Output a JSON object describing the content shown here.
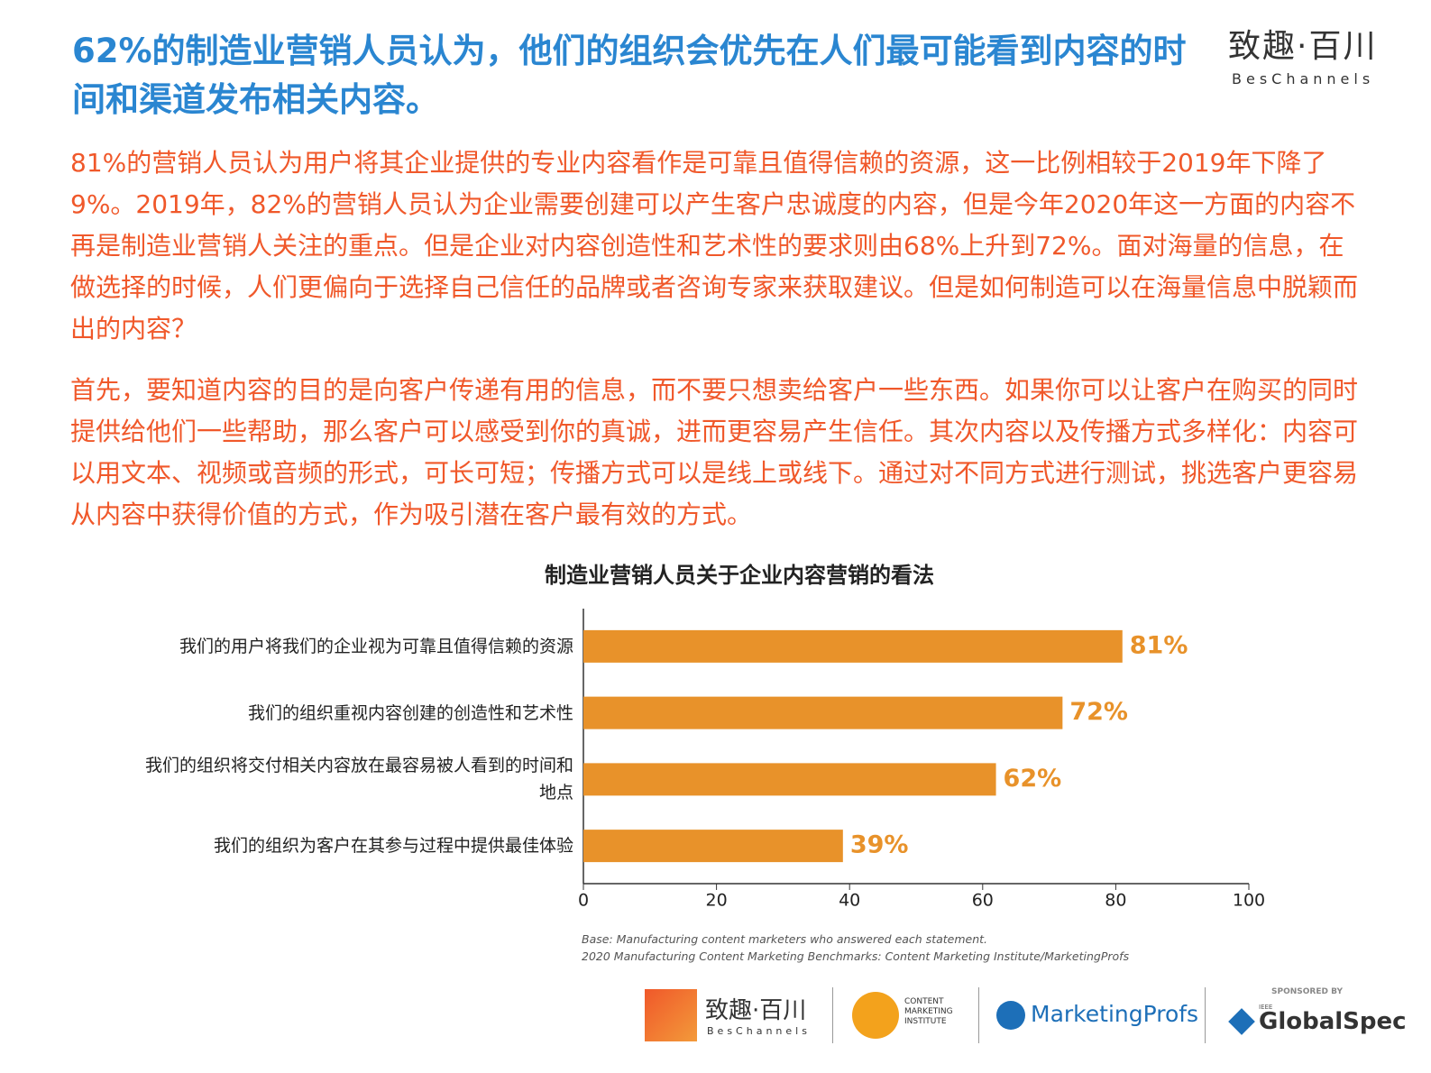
{
  "header": {
    "title": "62%的制造业营销人员认为，他们的组织会优先在人们最可能看到内容的时间和渠道发布相关内容。",
    "logo_cn": "致趣·百川",
    "logo_en": "BesChannels"
  },
  "paragraphs": [
    "81%的营销人员认为用户将其企业提供的专业内容看作是可靠且值得信赖的资源，这一比例相较于2019年下降了9%。2019年，82%的营销人员认为企业需要创建可以产生客户忠诚度的内容，但是今年2020年这一方面的内容不再是制造业营销人关注的重点。但是企业对内容创造性和艺术性的要求则由68%上升到72%。面对海量的信息，在做选择的时候，人们更偏向于选择自己信任的品牌或者咨询专家来获取建议。但是如何制造可以在海量信息中脱颖而出的内容？",
    "首先，要知道内容的目的是向客户传递有用的信息，而不要只想卖给客户一些东西。如果你可以让客户在购买的同时提供给他们一些帮助，那么客户可以感受到你的真诚，进而更容易产生信任。其次内容以及传播方式多样化：内容可以用文本、视频或音频的形式，可长可短；传播方式可以是线上或线下。通过对不同方式进行测试，挑选客户更容易从内容中获得价值的方式，作为吸引潜在客户最有效的方式。"
  ],
  "chart_data": {
    "type": "bar",
    "orientation": "horizontal",
    "title": "制造业营销人员关于企业内容营销的看法",
    "categories": [
      "我们的用户将我们的企业视为可靠且值得信赖的资源",
      "我们的组织重视内容创建的创造性和艺术性",
      "我们的组织将交付相关内容放在最容易被人看到的时间和地点",
      "我们的组织为客户在其参与过程中提供最佳体验"
    ],
    "values": [
      81,
      72,
      62,
      39
    ],
    "value_labels": [
      "81%",
      "72%",
      "62%",
      "39%"
    ],
    "color": "#e8922a",
    "xlim": [
      0,
      100
    ],
    "xticks": [
      0,
      20,
      40,
      60,
      80,
      100
    ],
    "notes": [
      "Base: Manufacturing content marketers who answered each statement.",
      "2020 Manufacturing Content Marketing Benchmarks: Content Marketing Institute/MarketingProfs"
    ]
  },
  "footer": {
    "logo1_cn": "致趣·百川",
    "logo1_en": "BesChannels",
    "cmi": "CONTENT MARKETING INSTITUTE",
    "mp": "MarketingProfs",
    "sponsored": "SPONSORED BY",
    "ieee": "IEEE",
    "gs": "GlobalSpec"
  }
}
